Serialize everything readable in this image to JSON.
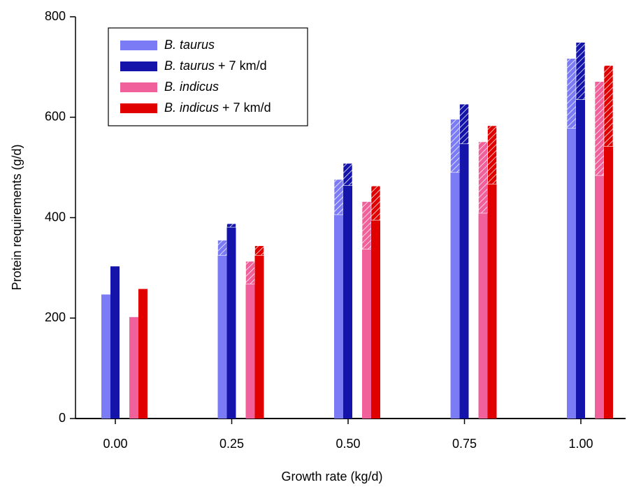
{
  "chart_data": {
    "type": "bar",
    "x_label": "Growth rate (kg/d)",
    "y_label": "Protein requirements (g/d)",
    "categories": [
      "0.00",
      "0.25",
      "0.50",
      "0.75",
      "1.00"
    ],
    "ylim": [
      0,
      800
    ],
    "yticks": [
      0,
      200,
      400,
      600,
      800
    ],
    "grid": false,
    "legend": "upper left",
    "series": [
      {
        "name": "B. taurus",
        "color": "#7b7bf5",
        "values": [
          247,
          325,
          406,
          490,
          578
        ],
        "hatched_values": [
          0,
          30,
          70,
          106,
          139
        ]
      },
      {
        "name": "B. taurus + 7 km/d",
        "color": "#1414aa",
        "values": [
          303,
          381,
          464,
          547,
          635
        ],
        "hatched_values": [
          0,
          7,
          44,
          79,
          114
        ]
      },
      {
        "name": "B. indicus",
        "color": "#f0609a",
        "values": [
          202,
          268,
          337,
          409,
          484
        ],
        "hatched_values": [
          0,
          45,
          95,
          142,
          187
        ]
      },
      {
        "name": "B. indicus + 7 km/d",
        "color": "#e00000",
        "values": [
          258,
          325,
          395,
          467,
          542
        ],
        "hatched_values": [
          0,
          19,
          68,
          116,
          161
        ]
      }
    ]
  }
}
